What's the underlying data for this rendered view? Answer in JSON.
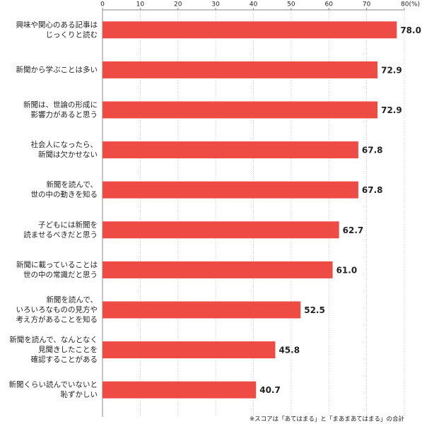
{
  "chart_data": {
    "type": "bar",
    "orientation": "horizontal",
    "categories": [
      [
        "興味や関心のある記事は",
        "じっくりと読む"
      ],
      [
        "新聞から学ぶことは多い"
      ],
      [
        "新聞は、世論の形成に",
        "影響力があると思う"
      ],
      [
        "社会人になったら、",
        "新聞は欠かせない"
      ],
      [
        "新聞を読んで、",
        "世の中の動きを知る"
      ],
      [
        "子どもには新聞を",
        "読ませるべきだと思う"
      ],
      [
        "新聞に載っていることは",
        "世の中の常識だと思う"
      ],
      [
        "新聞を読んで、",
        "いろいろなものの見方や",
        "考え方があることを知る"
      ],
      [
        "新聞を読んで、なんとなく",
        "見聞きしたことを",
        "確認することがある"
      ],
      [
        "新聞くらい読んでいないと",
        "恥ずかしい"
      ]
    ],
    "values": [
      78.0,
      72.9,
      72.9,
      67.8,
      67.8,
      62.7,
      61.0,
      52.5,
      45.8,
      40.7
    ],
    "value_labels": [
      "78.0",
      "72.9",
      "72.9",
      "67.8",
      "67.8",
      "62.7",
      "61.0",
      "52.5",
      "45.8",
      "40.7"
    ],
    "color": "#ee4b45",
    "xlim": [
      0,
      80
    ],
    "xticks": [
      0,
      10,
      20,
      30,
      40,
      50,
      60,
      70,
      {
        "value": 80,
        "label": "80(%)"
      }
    ],
    "grid": true,
    "note": "※スコアは「あてはまる」と「まあまあてはまる」の合計"
  }
}
